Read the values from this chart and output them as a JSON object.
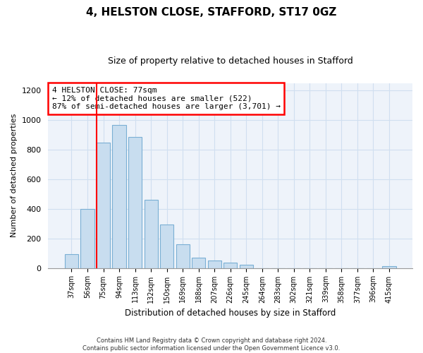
{
  "title": "4, HELSTON CLOSE, STAFFORD, ST17 0GZ",
  "subtitle": "Size of property relative to detached houses in Stafford",
  "xlabel": "Distribution of detached houses by size in Stafford",
  "ylabel": "Number of detached properties",
  "bar_labels": [
    "37sqm",
    "56sqm",
    "75sqm",
    "94sqm",
    "113sqm",
    "132sqm",
    "150sqm",
    "169sqm",
    "188sqm",
    "207sqm",
    "226sqm",
    "245sqm",
    "264sqm",
    "283sqm",
    "302sqm",
    "321sqm",
    "339sqm",
    "358sqm",
    "377sqm",
    "396sqm",
    "415sqm"
  ],
  "bar_values": [
    95,
    400,
    850,
    965,
    885,
    460,
    295,
    160,
    70,
    50,
    35,
    20,
    0,
    0,
    0,
    0,
    0,
    0,
    0,
    0,
    10
  ],
  "bar_color": "#c8ddef",
  "bar_edge_color": "#7aafd4",
  "ylim": [
    0,
    1250
  ],
  "yticks": [
    0,
    200,
    400,
    600,
    800,
    1000,
    1200
  ],
  "annotation_title": "4 HELSTON CLOSE: 77sqm",
  "annotation_line1": "← 12% of detached houses are smaller (522)",
  "annotation_line2": "87% of semi-detached houses are larger (3,701) →",
  "red_line_bar_index": 2,
  "footer_line1": "Contains HM Land Registry data © Crown copyright and database right 2024.",
  "footer_line2": "Contains public sector information licensed under the Open Government Licence v3.0.",
  "grid_color": "#d0dff0",
  "bg_color": "#eef3fa"
}
